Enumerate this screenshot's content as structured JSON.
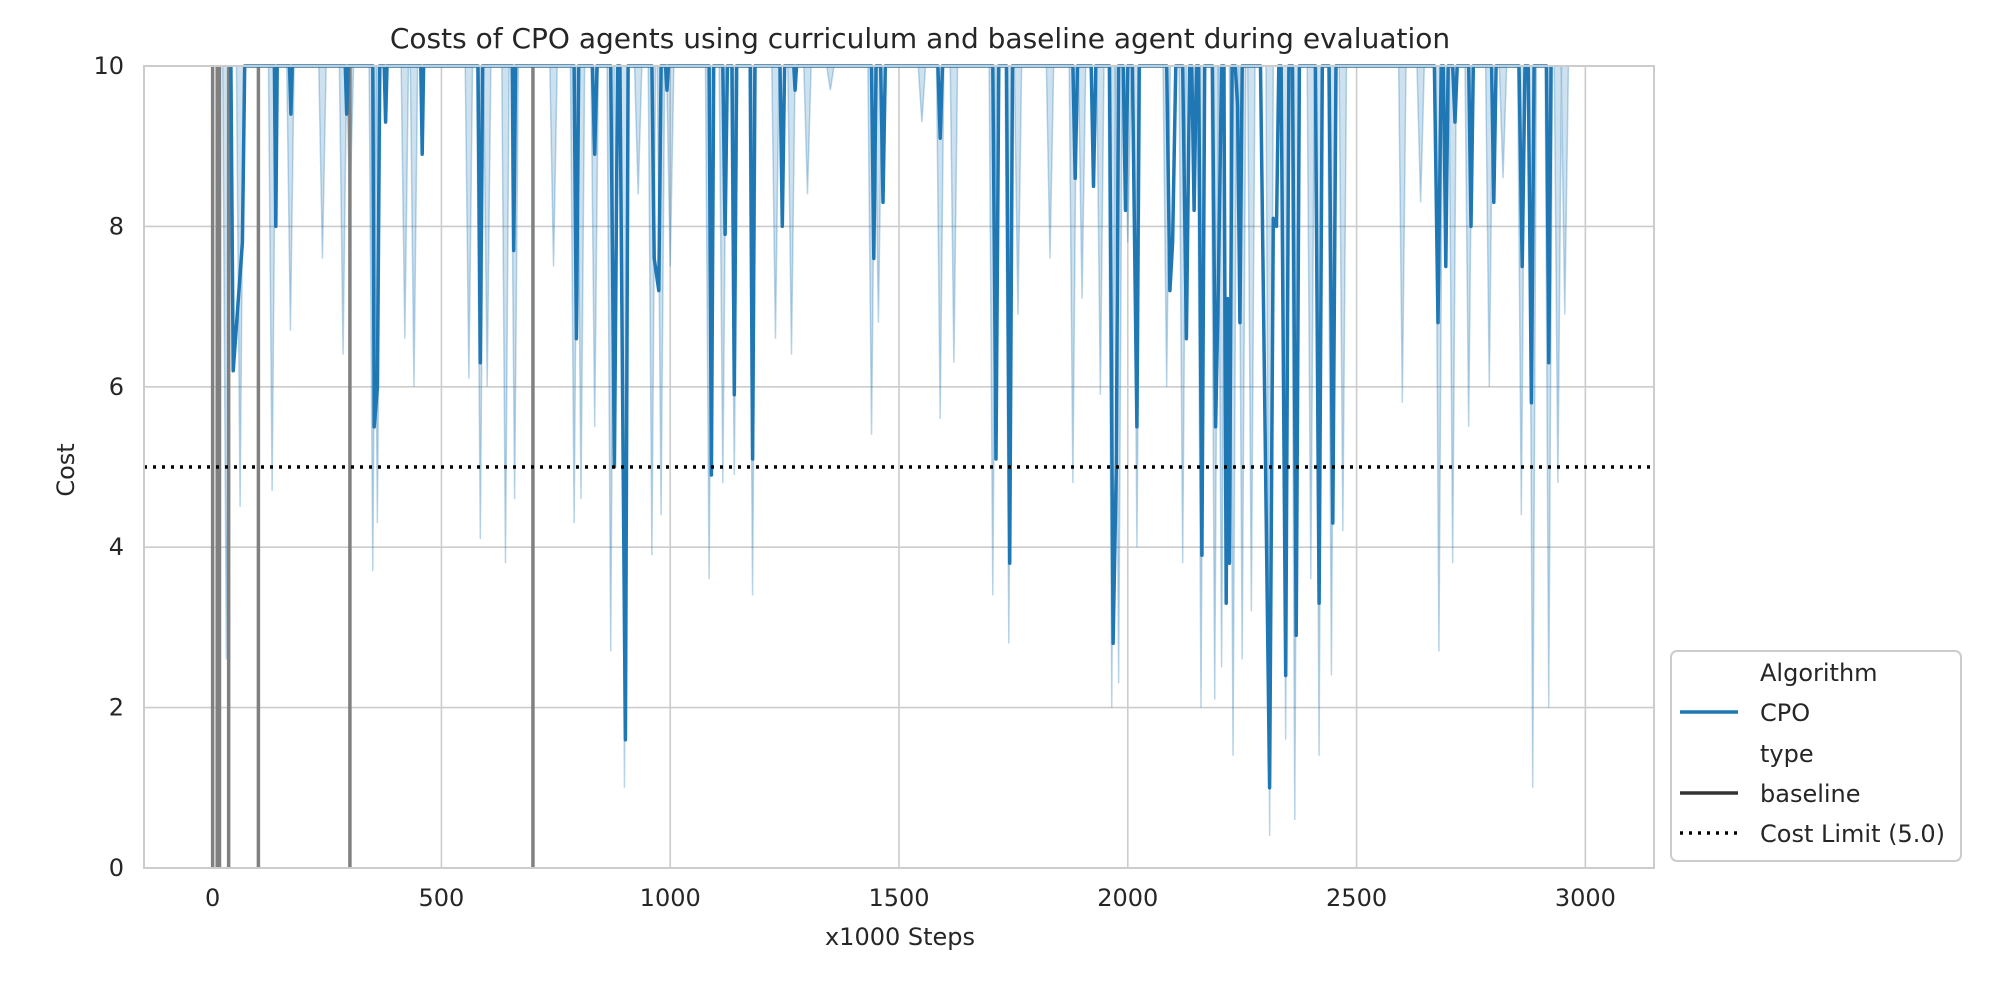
{
  "chart_data": {
    "type": "line",
    "title": "Costs of CPO agents using curriculum and baseline agent during evaluation",
    "xlabel": "x1000 Steps",
    "ylabel": "Cost",
    "xlim": [
      -150,
      3150
    ],
    "ylim": [
      0,
      10
    ],
    "x_ticks": [
      0,
      500,
      1000,
      1500,
      2000,
      2500,
      3000
    ],
    "x_tick_labels": [
      "0",
      "500",
      "1000",
      "1500",
      "2000",
      "2500",
      "3000"
    ],
    "y_ticks": [
      0,
      2,
      4,
      6,
      8,
      10
    ],
    "y_tick_labels": [
      "0",
      "2",
      "4",
      "6",
      "8",
      "10"
    ],
    "grid": true,
    "legend_position": "lower-right outside",
    "legend": {
      "header_algorithm": "Algorithm",
      "header_type": "type",
      "entries": [
        "CPO",
        "baseline",
        "Cost Limit (5.0)"
      ]
    },
    "colors": {
      "cpo_line": "#1f77b4",
      "cpo_band": "#1f77b4",
      "curriculum_markers": "#808080",
      "cost_limit": "#000000",
      "grid": "#cccccc"
    },
    "cost_limit": 5.0,
    "curriculum_task_change_steps": [
      0,
      10,
      15,
      35,
      100,
      300,
      700
    ],
    "series": [
      {
        "name": "CPO",
        "style": "solid",
        "points": [
          [
            40,
            10
          ],
          [
            45,
            6.2
          ],
          [
            55,
            7.0
          ],
          [
            65,
            7.8
          ],
          [
            70,
            10
          ],
          [
            135,
            10
          ],
          [
            138,
            8.0
          ],
          [
            141,
            10
          ],
          [
            168,
            10
          ],
          [
            171,
            9.4
          ],
          [
            174,
            10
          ],
          [
            290,
            10
          ],
          [
            293,
            9.4
          ],
          [
            296,
            10
          ],
          [
            350,
            10
          ],
          [
            353,
            5.5
          ],
          [
            360,
            6.0
          ],
          [
            365,
            10
          ],
          [
            375,
            10
          ],
          [
            378,
            9.3
          ],
          [
            381,
            10
          ],
          [
            455,
            10
          ],
          [
            458,
            8.9
          ],
          [
            461,
            10
          ],
          [
            580,
            10
          ],
          [
            585,
            6.3
          ],
          [
            590,
            10
          ],
          [
            655,
            10
          ],
          [
            658,
            7.7
          ],
          [
            662,
            10
          ],
          [
            790,
            10
          ],
          [
            795,
            6.6
          ],
          [
            800,
            10
          ],
          [
            830,
            10
          ],
          [
            835,
            8.9
          ],
          [
            840,
            10
          ],
          [
            870,
            10
          ],
          [
            878,
            5.0
          ],
          [
            885,
            10
          ],
          [
            890,
            10
          ],
          [
            902,
            1.6
          ],
          [
            908,
            10
          ],
          [
            960,
            10
          ],
          [
            965,
            7.6
          ],
          [
            975,
            7.2
          ],
          [
            980,
            10
          ],
          [
            990,
            10
          ],
          [
            993,
            9.7
          ],
          [
            996,
            10
          ],
          [
            1085,
            10
          ],
          [
            1090,
            4.9
          ],
          [
            1095,
            10
          ],
          [
            1115,
            10
          ],
          [
            1120,
            7.9
          ],
          [
            1125,
            10
          ],
          [
            1135,
            10
          ],
          [
            1140,
            5.9
          ],
          [
            1145,
            10
          ],
          [
            1175,
            10
          ],
          [
            1180,
            5.1
          ],
          [
            1185,
            10
          ],
          [
            1240,
            10
          ],
          [
            1245,
            8.0
          ],
          [
            1250,
            10
          ],
          [
            1270,
            10
          ],
          [
            1273,
            9.7
          ],
          [
            1276,
            10
          ],
          [
            1440,
            10
          ],
          [
            1445,
            7.6
          ],
          [
            1450,
            10
          ],
          [
            1460,
            10
          ],
          [
            1465,
            8.3
          ],
          [
            1470,
            10
          ],
          [
            1585,
            10
          ],
          [
            1590,
            9.1
          ],
          [
            1595,
            10
          ],
          [
            1705,
            10
          ],
          [
            1712,
            5.1
          ],
          [
            1718,
            10
          ],
          [
            1735,
            10
          ],
          [
            1742,
            3.8
          ],
          [
            1748,
            10
          ],
          [
            1880,
            10
          ],
          [
            1885,
            8.6
          ],
          [
            1890,
            10
          ],
          [
            1920,
            10
          ],
          [
            1925,
            8.5
          ],
          [
            1930,
            10
          ],
          [
            1960,
            10
          ],
          [
            1968,
            2.8
          ],
          [
            1975,
            5.0
          ],
          [
            1980,
            10
          ],
          [
            1990,
            10
          ],
          [
            1995,
            8.2
          ],
          [
            2000,
            10
          ],
          [
            2010,
            10
          ],
          [
            2020,
            5.5
          ],
          [
            2025,
            10
          ],
          [
            2085,
            10
          ],
          [
            2092,
            7.2
          ],
          [
            2098,
            7.8
          ],
          [
            2105,
            10
          ],
          [
            2120,
            10
          ],
          [
            2128,
            6.6
          ],
          [
            2135,
            10
          ],
          [
            2140,
            10
          ],
          [
            2145,
            8.2
          ],
          [
            2150,
            10
          ],
          [
            2155,
            10
          ],
          [
            2162,
            3.9
          ],
          [
            2168,
            10
          ],
          [
            2185,
            10
          ],
          [
            2192,
            5.5
          ],
          [
            2198,
            7.3
          ],
          [
            2205,
            10
          ],
          [
            2210,
            10
          ],
          [
            2215,
            3.3
          ],
          [
            2218,
            7.1
          ],
          [
            2222,
            3.8
          ],
          [
            2228,
            10
          ],
          [
            2235,
            10
          ],
          [
            2240,
            9.5
          ],
          [
            2245,
            6.8
          ],
          [
            2250,
            10
          ],
          [
            2290,
            10
          ],
          [
            2310,
            1.0
          ],
          [
            2318,
            8.1
          ],
          [
            2325,
            8.0
          ],
          [
            2330,
            10
          ],
          [
            2335,
            10
          ],
          [
            2345,
            2.4
          ],
          [
            2352,
            10
          ],
          [
            2360,
            10
          ],
          [
            2368,
            2.9
          ],
          [
            2375,
            10
          ],
          [
            2410,
            10
          ],
          [
            2418,
            3.3
          ],
          [
            2425,
            10
          ],
          [
            2440,
            10
          ],
          [
            2448,
            4.3
          ],
          [
            2455,
            10
          ],
          [
            2670,
            10
          ],
          [
            2678,
            6.8
          ],
          [
            2685,
            10
          ],
          [
            2690,
            10
          ],
          [
            2695,
            7.5
          ],
          [
            2700,
            10
          ],
          [
            2710,
            10
          ],
          [
            2715,
            9.3
          ],
          [
            2720,
            10
          ],
          [
            2745,
            10
          ],
          [
            2750,
            8.0
          ],
          [
            2755,
            10
          ],
          [
            2795,
            10
          ],
          [
            2800,
            8.3
          ],
          [
            2805,
            10
          ],
          [
            2855,
            10
          ],
          [
            2862,
            7.5
          ],
          [
            2868,
            10
          ],
          [
            2875,
            10
          ],
          [
            2882,
            5.8
          ],
          [
            2888,
            10
          ],
          [
            2915,
            10
          ],
          [
            2920,
            6.3
          ],
          [
            2925,
            10
          ]
        ]
      }
    ],
    "confidence_band_dips": [
      [
        30,
        2.6
      ],
      [
        60,
        4.5
      ],
      [
        130,
        4.7
      ],
      [
        170,
        6.7
      ],
      [
        240,
        7.6
      ],
      [
        285,
        6.4
      ],
      [
        300,
        8.2
      ],
      [
        350,
        3.7
      ],
      [
        360,
        4.3
      ],
      [
        420,
        6.6
      ],
      [
        440,
        6.0
      ],
      [
        560,
        6.1
      ],
      [
        585,
        4.1
      ],
      [
        600,
        6.0
      ],
      [
        640,
        3.8
      ],
      [
        660,
        4.6
      ],
      [
        745,
        7.5
      ],
      [
        790,
        4.3
      ],
      [
        805,
        4.6
      ],
      [
        835,
        5.5
      ],
      [
        870,
        2.7
      ],
      [
        900,
        1.0
      ],
      [
        930,
        8.4
      ],
      [
        960,
        3.9
      ],
      [
        980,
        4.4
      ],
      [
        1000,
        7.5
      ],
      [
        1085,
        3.6
      ],
      [
        1115,
        4.8
      ],
      [
        1140,
        4.9
      ],
      [
        1180,
        3.4
      ],
      [
        1230,
        6.6
      ],
      [
        1265,
        6.4
      ],
      [
        1300,
        8.4
      ],
      [
        1350,
        9.7
      ],
      [
        1440,
        5.4
      ],
      [
        1455,
        6.8
      ],
      [
        1550,
        9.3
      ],
      [
        1590,
        5.6
      ],
      [
        1620,
        6.3
      ],
      [
        1705,
        3.4
      ],
      [
        1740,
        2.8
      ],
      [
        1760,
        6.9
      ],
      [
        1830,
        7.6
      ],
      [
        1880,
        4.8
      ],
      [
        1900,
        7.1
      ],
      [
        1940,
        5.9
      ],
      [
        1965,
        2.0
      ],
      [
        1980,
        2.3
      ],
      [
        2000,
        7.8
      ],
      [
        2020,
        4.0
      ],
      [
        2085,
        6.0
      ],
      [
        2120,
        3.8
      ],
      [
        2160,
        2.0
      ],
      [
        2190,
        2.1
      ],
      [
        2205,
        2.5
      ],
      [
        2230,
        1.4
      ],
      [
        2250,
        2.6
      ],
      [
        2270,
        3.2
      ],
      [
        2310,
        0.4
      ],
      [
        2345,
        1.6
      ],
      [
        2365,
        0.6
      ],
      [
        2400,
        3.6
      ],
      [
        2418,
        1.4
      ],
      [
        2445,
        2.4
      ],
      [
        2470,
        4.2
      ],
      [
        2600,
        5.8
      ],
      [
        2640,
        8.3
      ],
      [
        2680,
        2.7
      ],
      [
        2710,
        3.8
      ],
      [
        2745,
        5.5
      ],
      [
        2790,
        6.0
      ],
      [
        2820,
        8.6
      ],
      [
        2860,
        4.4
      ],
      [
        2885,
        1.0
      ],
      [
        2920,
        2.0
      ],
      [
        2940,
        4.8
      ],
      [
        2955,
        6.9
      ]
    ]
  }
}
